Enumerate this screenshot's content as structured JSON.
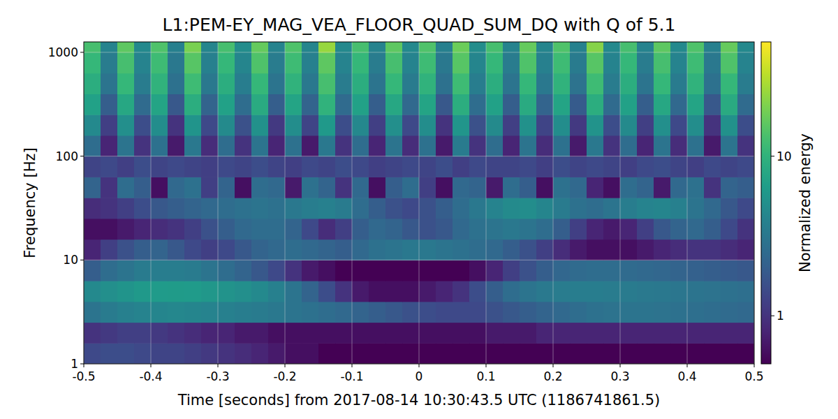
{
  "chart_data": {
    "type": "heatmap",
    "title": "L1:PEM-EY_MAG_VEA_FLOOR_QUAD_SUM_DQ with Q of 5.1",
    "x_label": "Time [seconds] from 2017-08-14 10:30:43.5 UTC (1186741861.5)",
    "y_label": "Frequency [Hz]",
    "colorbar_label": "Normalized energy",
    "xlim": [
      -0.5,
      0.5
    ],
    "xticks": [
      -0.5,
      -0.4,
      -0.3,
      -0.2,
      -0.1,
      0,
      0.1,
      0.2,
      0.3,
      0.4,
      0.5
    ],
    "ylim": [
      1,
      1260
    ],
    "yticks": [
      1,
      10,
      100,
      1000
    ],
    "log": "y",
    "grid": true,
    "clim": [
      0.5,
      52
    ],
    "cticks": [
      1,
      10
    ],
    "x_bins": [
      -0.5,
      -0.475,
      -0.45,
      -0.425,
      -0.4,
      -0.375,
      -0.35,
      -0.325,
      -0.3,
      -0.275,
      -0.25,
      -0.225,
      -0.2,
      -0.175,
      -0.15,
      -0.125,
      -0.1,
      -0.075,
      -0.05,
      -0.025,
      0,
      0.025,
      0.05,
      0.075,
      0.1,
      0.125,
      0.15,
      0.175,
      0.2,
      0.225,
      0.25,
      0.275,
      0.3,
      0.325,
      0.35,
      0.375,
      0.4,
      0.425,
      0.45,
      0.475,
      0.5
    ],
    "y_bins": [
      1,
      1.585,
      2.512,
      3.981,
      6.31,
      10,
      15.85,
      25.12,
      39.81,
      63.1,
      100,
      158.5,
      251.2,
      398.1,
      631,
      1000,
      1260
    ],
    "values": [
      [
        1.4,
        1.5,
        1.5,
        1.4,
        1.3,
        1.3,
        1.2,
        1.1,
        1.0,
        0.9,
        0.8,
        0.7,
        0.6,
        0.6,
        0.5,
        0.5,
        0.5,
        0.5,
        0.5,
        0.5,
        0.5,
        0.5,
        0.5,
        0.5,
        0.5,
        0.5,
        0.5,
        0.5,
        0.5,
        0.5,
        0.5,
        0.5,
        0.5,
        0.5,
        0.5,
        0.5,
        0.5,
        0.5,
        0.5,
        0.5
      ],
      [
        1.0,
        1.1,
        1.2,
        1.2,
        1.1,
        1.0,
        0.9,
        0.8,
        0.8,
        0.7,
        0.7,
        0.6,
        0.6,
        0.6,
        0.6,
        0.6,
        0.6,
        0.6,
        0.6,
        0.6,
        0.6,
        0.6,
        0.6,
        0.6,
        0.7,
        0.7,
        0.7,
        0.8,
        0.8,
        0.8,
        0.8,
        0.8,
        0.8,
        0.8,
        0.8,
        0.8,
        0.8,
        0.8,
        0.8,
        0.8
      ],
      [
        3.0,
        3.4,
        3.8,
        4.0,
        4.2,
        4.3,
        4.2,
        4.0,
        3.8,
        3.6,
        3.4,
        3.2,
        3.0,
        2.8,
        2.6,
        2.4,
        2.2,
        2.0,
        1.8,
        1.6,
        1.5,
        1.4,
        1.4,
        1.4,
        1.6,
        1.8,
        2.0,
        2.2,
        2.4,
        2.6,
        2.8,
        2.9,
        3.0,
        3.0,
        2.9,
        2.8,
        2.7,
        2.6,
        2.5,
        2.4
      ],
      [
        4.5,
        5.0,
        5.5,
        6.0,
        6.2,
        6.3,
        6.2,
        5.8,
        5.4,
        5.0,
        4.5,
        3.8,
        3.0,
        2.2,
        1.5,
        1.0,
        0.7,
        0.6,
        0.6,
        0.6,
        0.7,
        0.8,
        1.0,
        1.5,
        2.0,
        2.6,
        3.0,
        3.3,
        3.5,
        3.6,
        3.6,
        3.5,
        3.4,
        3.3,
        3.2,
        3.1,
        3.0,
        2.9,
        2.8,
        2.7
      ],
      [
        2.0,
        2.6,
        3.0,
        3.4,
        3.6,
        3.6,
        3.4,
        3.0,
        2.6,
        2.2,
        1.8,
        1.4,
        1.0,
        0.7,
        0.6,
        0.5,
        0.5,
        0.5,
        0.5,
        0.5,
        0.5,
        0.5,
        0.5,
        0.6,
        0.8,
        1.2,
        1.6,
        2.0,
        2.3,
        2.5,
        2.6,
        2.6,
        2.5,
        2.4,
        2.3,
        2.2,
        2.1,
        2.0,
        1.9,
        1.8
      ],
      [
        0.8,
        1.2,
        1.6,
        2.0,
        2.2,
        1.8,
        1.4,
        1.2,
        1.4,
        1.8,
        2.2,
        2.4,
        2.6,
        2.4,
        2.2,
        2.0,
        2.4,
        2.8,
        3.0,
        3.2,
        3.2,
        3.0,
        2.8,
        2.6,
        2.4,
        2.0,
        1.6,
        1.2,
        0.9,
        0.7,
        0.6,
        0.6,
        0.6,
        0.7,
        0.8,
        0.9,
        1.0,
        1.0,
        0.9,
        0.8
      ],
      [
        0.6,
        0.6,
        0.7,
        0.8,
        0.9,
        1.0,
        1.2,
        1.6,
        2.0,
        2.4,
        2.6,
        2.6,
        2.2,
        1.4,
        0.9,
        1.2,
        2.0,
        2.4,
        2.2,
        1.8,
        1.6,
        1.8,
        2.4,
        2.8,
        3.0,
        3.2,
        3.0,
        2.6,
        2.0,
        1.2,
        0.8,
        0.7,
        0.8,
        1.2,
        1.8,
        2.2,
        2.4,
        2.0,
        1.4,
        1.0
      ],
      [
        0.9,
        1.0,
        1.2,
        1.5,
        1.8,
        2.0,
        2.2,
        2.4,
        2.6,
        2.8,
        3.0,
        2.8,
        3.2,
        3.6,
        3.8,
        3.4,
        2.6,
        2.0,
        1.6,
        1.4,
        1.6,
        2.0,
        2.6,
        3.2,
        4.0,
        4.6,
        4.8,
        4.2,
        3.4,
        2.8,
        2.6,
        3.0,
        3.6,
        4.0,
        4.2,
        3.8,
        3.0,
        2.4,
        1.8,
        1.4
      ],
      [
        2.2,
        1.0,
        2.6,
        2.0,
        0.6,
        2.4,
        2.8,
        1.2,
        2.2,
        0.6,
        2.6,
        2.4,
        0.7,
        2.8,
        2.2,
        1.0,
        2.4,
        0.6,
        2.0,
        2.6,
        1.2,
        0.6,
        2.4,
        2.2,
        0.7,
        2.6,
        2.0,
        0.6,
        2.8,
        2.4,
        0.8,
        0.6,
        2.6,
        2.2,
        0.7,
        2.4,
        2.8,
        1.0,
        2.2,
        2.0
      ],
      [
        1.3,
        1.4,
        1.2,
        1.5,
        1.3,
        1.4,
        1.3,
        1.2,
        1.4,
        1.3,
        1.5,
        1.3,
        1.2,
        1.4,
        1.3,
        1.5,
        1.4,
        1.2,
        1.3,
        1.4,
        1.3,
        1.5,
        1.2,
        1.4,
        1.3,
        1.3,
        1.4,
        1.2,
        1.5,
        1.3,
        1.4,
        1.3,
        1.2,
        1.4,
        1.5,
        1.3,
        1.2,
        1.4,
        1.3,
        1.4
      ],
      [
        2.6,
        0.8,
        3.0,
        1.0,
        2.8,
        0.7,
        3.2,
        0.9,
        2.6,
        1.0,
        3.0,
        0.8,
        2.8,
        0.7,
        3.2,
        1.0,
        2.6,
        0.8,
        3.0,
        0.9,
        2.8,
        0.7,
        3.4,
        1.0,
        2.6,
        0.8,
        3.0,
        0.9,
        2.8,
        0.7,
        3.2,
        1.0,
        2.6,
        0.8,
        3.0,
        0.9,
        2.8,
        0.7,
        3.0,
        1.0
      ],
      [
        4.5,
        1.2,
        5.0,
        1.5,
        4.8,
        1.0,
        5.5,
        1.4,
        4.6,
        1.6,
        5.2,
        1.1,
        4.8,
        1.3,
        6.0,
        1.5,
        4.4,
        1.2,
        5.0,
        1.4,
        4.8,
        1.0,
        5.6,
        1.6,
        4.6,
        1.2,
        5.2,
        1.3,
        4.8,
        1.1,
        5.4,
        1.5,
        4.6,
        1.2,
        5.0,
        1.4,
        4.8,
        1.0,
        5.2,
        1.5
      ],
      [
        7,
        2,
        8,
        2.5,
        7.5,
        1.8,
        9,
        2.2,
        7,
        2.6,
        8.5,
        2,
        7.5,
        2.2,
        10,
        2.5,
        7,
        2,
        8,
        2.4,
        7.5,
        1.8,
        9,
        2.6,
        7,
        2,
        8.5,
        2.2,
        7.5,
        1.9,
        9,
        2.5,
        7,
        2,
        8,
        2.4,
        7.5,
        1.8,
        8.5,
        2.5
      ],
      [
        9,
        3,
        11,
        3.5,
        10,
        2.8,
        12,
        3.2,
        9,
        3.6,
        11,
        3,
        10,
        3.2,
        13,
        3.5,
        9,
        3,
        11,
        3.4,
        10,
        2.8,
        12,
        3.6,
        9,
        3,
        11,
        3.2,
        10,
        2.9,
        12,
        3.5,
        9,
        3,
        11,
        3.4,
        10,
        2.8,
        11,
        3.5
      ],
      [
        11,
        3.5,
        13,
        4,
        12,
        3.2,
        15,
        3.8,
        11,
        4.2,
        14,
        3.5,
        12,
        3.8,
        16,
        4,
        11,
        3.5,
        13,
        4,
        12,
        3.2,
        15,
        4.2,
        11,
        3.5,
        14,
        3.8,
        12,
        3.4,
        15,
        4,
        11,
        3.5,
        13,
        4,
        12,
        3.2,
        14,
        4
      ],
      [
        13,
        4,
        16,
        4.5,
        14,
        3.8,
        20,
        4.2,
        13,
        4.8,
        17,
        4,
        14,
        4.2,
        25,
        4.5,
        13,
        4,
        16,
        4.5,
        14,
        3.8,
        18,
        4.8,
        13,
        4,
        17,
        4.2,
        14,
        3.9,
        22,
        4.5,
        13,
        4,
        16,
        4.5,
        14,
        3.8,
        17,
        4.5
      ]
    ]
  }
}
